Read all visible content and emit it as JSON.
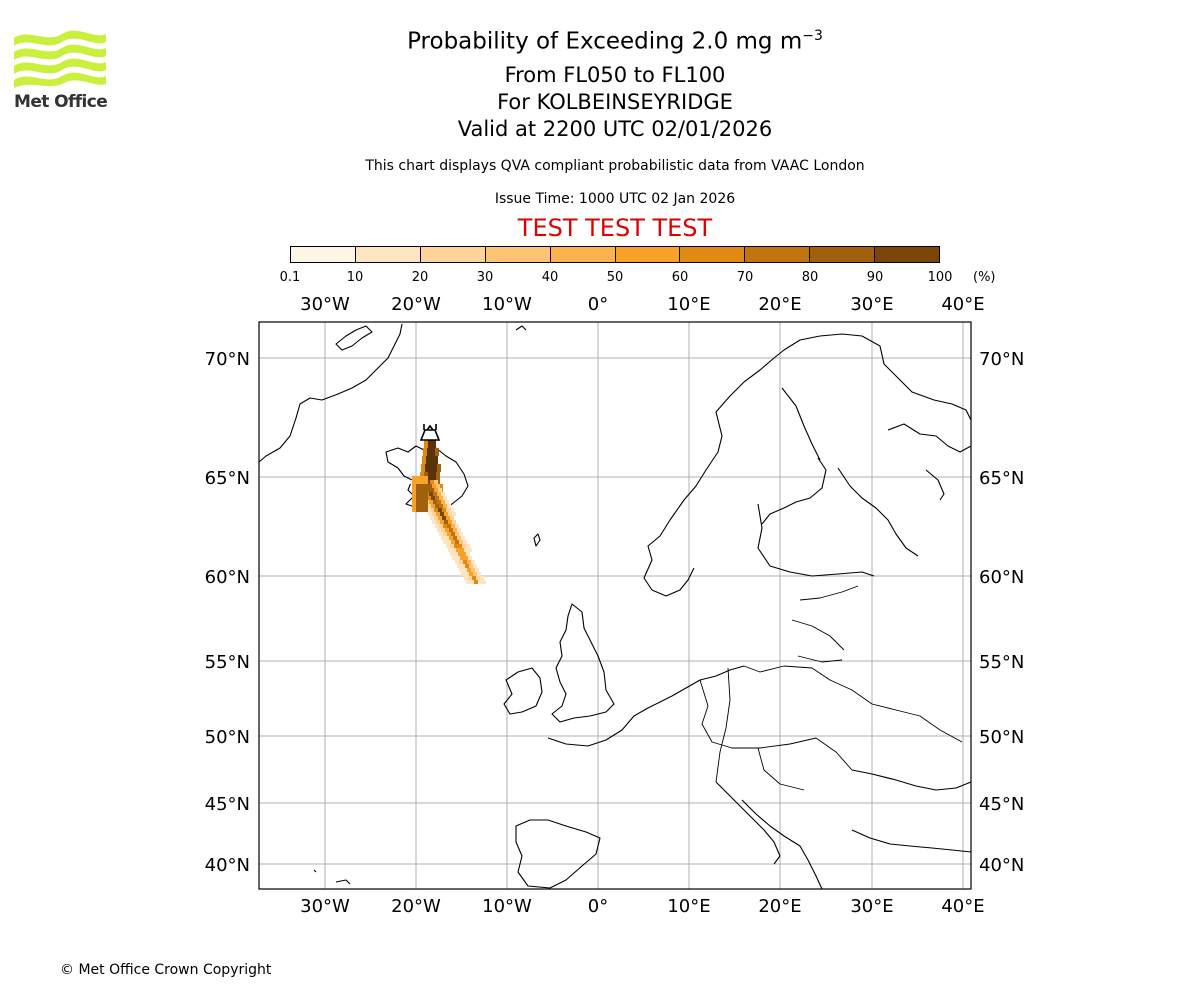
{
  "header": {
    "logo_text": "Met Office",
    "title_prefix": "Probability of Exceeding 2.0 mg m",
    "title_exponent": "−3",
    "level_range": "From FL050 to FL100",
    "location": "For KOLBEINSEYRIDGE",
    "valid_time": "Valid at 2200 UTC 02/01/2026",
    "note": "This chart displays QVA compliant probabilistic data from VAAC London",
    "issue_time": "Issue Time: 1000 UTC 02 Jan 2026",
    "test_banner": "TEST TEST TEST",
    "test_color": "#e00000"
  },
  "colorbar": {
    "labels": [
      "0.1",
      "10",
      "20",
      "30",
      "40",
      "50",
      "60",
      "70",
      "80",
      "90",
      "100"
    ],
    "unit": "(%)",
    "colors": [
      "#fff5e6",
      "#fde5c2",
      "#fdd59a",
      "#fdc474",
      "#fbb24c",
      "#f9a22a",
      "#e08a14",
      "#c07510",
      "#a0600c",
      "#7a4608",
      "#5a3306"
    ]
  },
  "map": {
    "lon_labels": [
      "30°W",
      "20°W",
      "10°W",
      "0°",
      "10°E",
      "20°E",
      "30°E",
      "40°E"
    ],
    "lat_labels": [
      "70°N",
      "65°N",
      "60°N",
      "55°N",
      "50°N",
      "45°N",
      "40°N"
    ],
    "plume_color_high": "#5a3306",
    "plume_color_low": "#fde5c2",
    "volcano_icon": "volcano-icon"
  },
  "footer": {
    "copyright": "© Met Office Crown Copyright"
  }
}
